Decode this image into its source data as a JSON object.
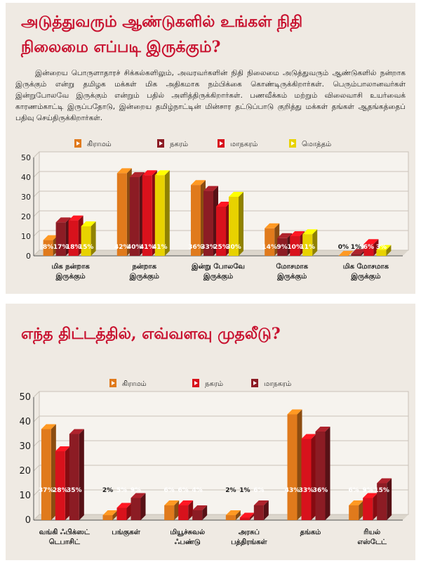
{
  "chart1": {
    "title_line1": "அடுத்துவரும் ஆண்டுகளில் உங்கள் நிதி",
    "title_line2": "நிலைமை எப்படி இருக்கும்?",
    "paragraph": "இன்றைய பொருளாதாரச் சிக்கல்களிலும், அவரவர்களின் நிதி நிலைமை அடுத்துவரும் ஆண்டுகளில் நன்றாக இருக்கும் என்று தமிழக மக்கள் மிக அதிகமாக நம்பிக்கை கொண்டிருக்கிறார்கள். பெரும்பாலானவர்கள் இன்றுபோலவே இருக்கும் என்றும் பதில் அளித்திருக்கிறார்கள். பணவீக்கம் மற்றும் விலைவாசி உயர்வைக் காரணம்காட்டி இருப்பதோடு, இன்றைய தமிழ்நாட்டின் மின்சார தட்டுப்பாடு குறித்து மக்கள் தங்கள் ஆதங்கத்தைப் பதிவு செய்திருக்கிறார்கள்."
  },
  "chart2": {
    "title": "எந்த திட்டத்தில், எவ்வளவு முதலீடு?"
  },
  "colors": {
    "orange": "#e07a1c",
    "maroon": "#8c1c24",
    "red": "#d8121c",
    "yellow": "#e8d200",
    "title": "#c8102e"
  },
  "chart_data": [
    {
      "type": "bar",
      "title": "",
      "categories": [
        [
          "மிக நன்றாக",
          "இருக்கும்"
        ],
        [
          "நன்றாக",
          "இருக்கும்"
        ],
        [
          "இன்று போலவே",
          "இருக்கும்"
        ],
        [
          "மோசமாக",
          "இருக்கும்"
        ],
        [
          "மிக மோசமாக",
          "இருக்கும்"
        ]
      ],
      "series": [
        {
          "name": "கிராமம்",
          "values": [
            8,
            42,
            36,
            14,
            0
          ],
          "color": "#e07a1c"
        },
        {
          "name": "நகரம்",
          "values": [
            17,
            40,
            33,
            9,
            1
          ],
          "color": "#8c1c24"
        },
        {
          "name": "மாநகரம்",
          "values": [
            18,
            41,
            25,
            10,
            6
          ],
          "color": "#d8121c"
        },
        {
          "name": "மொத்தம்",
          "values": [
            15,
            41,
            30,
            11,
            3
          ],
          "color": "#e8d200"
        }
      ],
      "data_labels": [
        [
          "8%",
          "42%",
          "36%",
          "14%",
          "0%"
        ],
        [
          "17%",
          "40%",
          "33%",
          "9%",
          "1%"
        ],
        [
          "18%",
          "41%",
          "25%",
          "10%",
          "6%"
        ],
        [
          "15%",
          "41%",
          "30%",
          "11%",
          "3%"
        ]
      ],
      "yticks": [
        "0",
        "10",
        "20",
        "30",
        "40",
        "50"
      ],
      "ylim": [
        0,
        50
      ],
      "grid": true,
      "legend_position": "top"
    },
    {
      "type": "bar",
      "title": "",
      "categories": [
        [
          "வங்கி ஃபிக்ஸட்",
          "டெபாசிட்"
        ],
        [
          "பங்குகள்"
        ],
        [
          "மியூச்சுவல்",
          "ஃபண்டு"
        ],
        [
          "அரசுப்",
          "பத்திரங்கள்"
        ],
        [
          "தங்கம்"
        ],
        [
          "ரியல்",
          "எஸ்டேட்"
        ]
      ],
      "series": [
        {
          "name": "கிராமம்",
          "values": [
            37,
            2,
            6,
            2,
            43,
            6
          ],
          "color": "#e07a1c"
        },
        {
          "name": "நகரம்",
          "values": [
            28,
            5,
            6,
            1,
            33,
            9
          ],
          "color": "#d8121c"
        },
        {
          "name": "மாநகரம்",
          "values": [
            35,
            9,
            4,
            6,
            36,
            15
          ],
          "color": "#8c1c24"
        }
      ],
      "data_labels": [
        [
          "37%",
          "2%",
          "6%",
          "2%",
          "43%",
          "6%"
        ],
        [
          "28%",
          "5%",
          "6%",
          "1%",
          "33%",
          "9%"
        ],
        [
          "35%",
          "9%",
          "4%",
          "6%",
          "36%",
          "15%"
        ]
      ],
      "yticks": [
        "0",
        "10",
        "20",
        "30",
        "40",
        "50"
      ],
      "ylim": [
        0,
        50
      ],
      "grid": true,
      "legend_position": "top"
    }
  ]
}
